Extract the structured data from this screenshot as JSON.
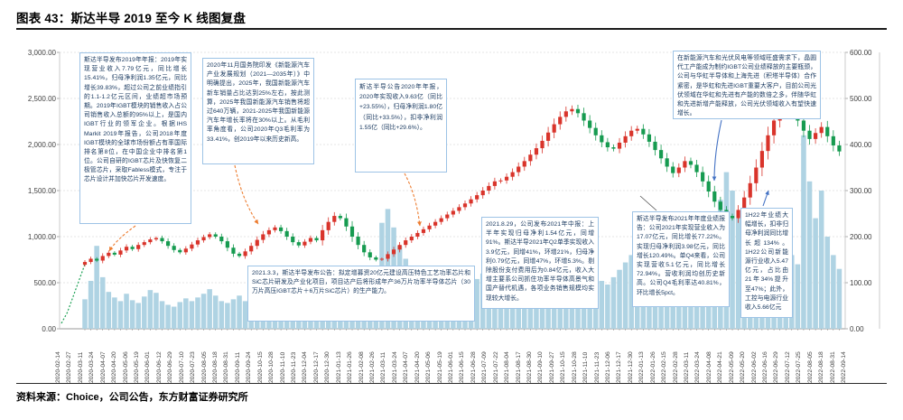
{
  "header": {
    "title": "图表 43：斯达半导 2019 至今 K 线图复盘"
  },
  "footer": {
    "source": "资料来源：Choice，公司公告，东方财富证券研究所"
  },
  "annotations": [
    {
      "id": "2019-annual-report",
      "text": "斯达半导发布2019年年报：2019年实现营业收入7.79亿元，同比增长 15.41%，归母净利润1.35亿元，同比增长39.83%，超过公司之前业绩指引的1.1-1.2亿元区间，业绩超市场预期。2019年IGBT模块的销售收入占公司销售收入总额的95%以上，是国内IGBT行业的领军企业。根据IHS Markit 2019年报告，公司2018年度IGBT模块的全球市场份额占有率国际排名第8位，在中国企业中排名第1位。公司自研的IGBT芯片及快恢复二极管芯片，采取Fabless模式，专注于芯片设计并加快芯片开发速度。"
    },
    {
      "id": "nev-policy-2020",
      "text": "2020年11月国务院印发《新能源汽车产业发展规划（2021—2035年）》中明确提出，2025年，我国新能源汽车新车销量占比达到25%左右，按此测算，2025年我国新能源汽车销售将超过640万辆，2021-2025年我国新能源汽车年增长率将在30%以上。从毛利率角度看，公司2020年Q3毛利率为33.41%，创2019年以来历史新高。"
    },
    {
      "id": "2020-annual-report",
      "text": "斯达半导公告2020年年报，2020年实现收入9.63亿（同比+23.55%），归母净利润1.80亿（同比+33.5%），扣非净利润1.55亿（同比+29.6%）。"
    },
    {
      "id": "2021-placement",
      "text": "2021.3.3，斯达半导发布公告：拟定增募资20亿元建设高压特色工艺功率芯片和SiC芯片研发及产业化项目，项目达产后将形成年产36万片功率半导体芯片（30万片高压IGBT芯片＋6万片SiC芯片）的生产能力。"
    },
    {
      "id": "2021-interim-report",
      "text": "2021.8.29，公司发布2021年中报：上半年实现归母净利1.54亿元，同增91%。斯达半导2021年Q2单季实现收入3.9亿元，同增41%，环增21%，归母净利0.79亿元，同增47%，环增5.3%。剔除股份支付费用后为0.84亿元，收入大增主要系公司抓住功率半导体高景气和国产替代机遇，各项业务销售规模均实现较大增长。"
    },
    {
      "id": "2021-annual-report",
      "text": "斯达半导发布2021年年度业绩报告：公司2021年实现营业收入为17.07亿元，同比增长77.22%。实现归母净利润3.98亿元，同比增长120.49%。单Q4来看，公司实现营收5.1亿元，同比增长72.94%。营收利润均创历史新高。公司Q4毛利率达40.81%，环比增长5pct。"
    },
    {
      "id": "1h22-results",
      "text": "1H22年业绩大幅增长，扣非归母净利润同比增长超134%。1H22公司新能源行业收入5.47亿元，占比由21年34%提升至47%；此外，工控与电源行业收入5.66亿元"
    },
    {
      "id": "foundry-capacity",
      "text": "在新能源汽车和光伏风电等领域旺盛需求下，晶圆代工产能成为制约IGBT公司业绩释放的主要瓶颈，公司与华虹半导体和上海先进（积塔半导体）合作紧密，是华虹和先进IGBT重要大客户，目前公司光伏领域在华虹和先进有产能的数倍之多，伴随华虹和先进新增产能释放，公司光伏领域收入有望快速增长。"
    }
  ],
  "chart_data": {
    "type": "candlestick",
    "title": "斯达半导 2019 至今 K 线图复盘",
    "grid": true,
    "legend_position": "none",
    "left_axis": {
      "max": 3000,
      "ticks": [
        "3,000.00",
        "2,500.00",
        "2,000.00",
        "1,500.00",
        "1,000.00",
        "500.00",
        "0.00"
      ]
    },
    "right_axis": {
      "max": 600,
      "ticks": [
        "600.00",
        "500.00",
        "400.00",
        "300.00",
        "200.00",
        "100.00",
        "0.00"
      ]
    },
    "x_tick_labels": [
      "2020-02-14",
      "2020-02-27",
      "2020-03-11",
      "2020-03-24",
      "2020-04-07",
      "2020-04-20",
      "2020-05-06",
      "2020-05-19",
      "2020-06-01",
      "2020-06-12",
      "2020-06-29",
      "2020-07-10",
      "2020-07-23",
      "2020-08-05",
      "2020-08-18",
      "2020-08-31",
      "2020-09-11",
      "2020-09-24",
      "2020-10-15",
      "2020-10-28",
      "2020-11-10",
      "2020-11-23",
      "2020-12-04",
      "2020-12-17",
      "2020-12-30",
      "2021-01-13",
      "2021-01-26",
      "2021-02-08",
      "2021-02-26",
      "2021-03-11",
      "2021-03-24",
      "2021-04-07",
      "2021-04-20",
      "2021-05-06",
      "2021-05-19",
      "2021-06-01",
      "2021-06-15",
      "2021-06-28",
      "2021-07-09",
      "2021-07-22",
      "2021-08-04",
      "2021-08-17",
      "2021-08-30",
      "2021-09-10",
      "2021-09-27",
      "2021-10-15",
      "2021-10-28",
      "2021-11-10",
      "2021-11-23",
      "2021-12-06",
      "2021-12-17",
      "2021-12-30",
      "2022-01-13",
      "2022-01-26",
      "2022-02-15",
      "2022-02-28",
      "2022-03-11",
      "2022-03-24",
      "2022-04-08",
      "2022-04-21",
      "2022-05-09",
      "2022-05-20",
      "2022-06-02",
      "2022-06-16",
      "2022-06-29",
      "2022-07-12",
      "2022-07-25",
      "2022-08-05",
      "2022-08-18",
      "2022-08-31",
      "2022-09-14"
    ],
    "closes": [
      145,
      152,
      148,
      158,
      165,
      161,
      170,
      178,
      173,
      182,
      188,
      194,
      197,
      190,
      180,
      171,
      166,
      174,
      183,
      192,
      199,
      205,
      200,
      190,
      176,
      163,
      158,
      168,
      180,
      193,
      205,
      214,
      220,
      212,
      200,
      188,
      181,
      189,
      197,
      192,
      214,
      232,
      245,
      240,
      222,
      200,
      182,
      166,
      155,
      150,
      152,
      162,
      172,
      182,
      192,
      200,
      208,
      216,
      224,
      232,
      240,
      248,
      256,
      264,
      272,
      281,
      290,
      300,
      310,
      320,
      322,
      330,
      340,
      352,
      364,
      378,
      392,
      408,
      426,
      444,
      460,
      472,
      477,
      468,
      452,
      436,
      420,
      405,
      394,
      391,
      404,
      418,
      430,
      434,
      422,
      406,
      388,
      370,
      352,
      338,
      350,
      364,
      356,
      340,
      320,
      298,
      276,
      258,
      245,
      240,
      258,
      285,
      316,
      350,
      386,
      420,
      452,
      476,
      483,
      470,
      452,
      430,
      412,
      425,
      438,
      418,
      398,
      385
    ],
    "volumes": [
      320,
      520,
      900,
      560,
      400,
      340,
      300,
      380,
      310,
      280,
      350,
      420,
      390,
      300,
      260,
      240,
      290,
      330,
      300,
      340,
      380,
      430,
      360,
      300,
      280,
      320,
      360,
      300,
      270,
      310,
      390,
      440,
      400,
      330,
      280,
      260,
      300,
      340,
      290,
      260,
      320,
      420,
      480,
      420,
      360,
      320,
      380,
      450,
      520,
      640,
      1150,
      1300,
      1100,
      900,
      760,
      620,
      540,
      480,
      430,
      400,
      380,
      420,
      390,
      360,
      420,
      480,
      540,
      600,
      560,
      500,
      470,
      520,
      480,
      440,
      500,
      580,
      680,
      780,
      860,
      920,
      980,
      1050,
      1000,
      880,
      760,
      660,
      580,
      520,
      480,
      560,
      640,
      720,
      800,
      680,
      560,
      500,
      460,
      420,
      520,
      640,
      560,
      480,
      560,
      680,
      820,
      1000,
      1200,
      1400,
      1700,
      1500,
      1200,
      1000,
      900,
      1100,
      1200,
      1000,
      850,
      760,
      900,
      800,
      700,
      2100,
      1600,
      1200,
      1500,
      1000,
      800,
      650
    ],
    "pre_line": [
      12,
      35,
      70,
      105,
      140
    ],
    "colors": {
      "up": "#d9342b",
      "down": "#169b50",
      "volume": "#afd3e3",
      "pre_line": "#1aa053"
    }
  }
}
